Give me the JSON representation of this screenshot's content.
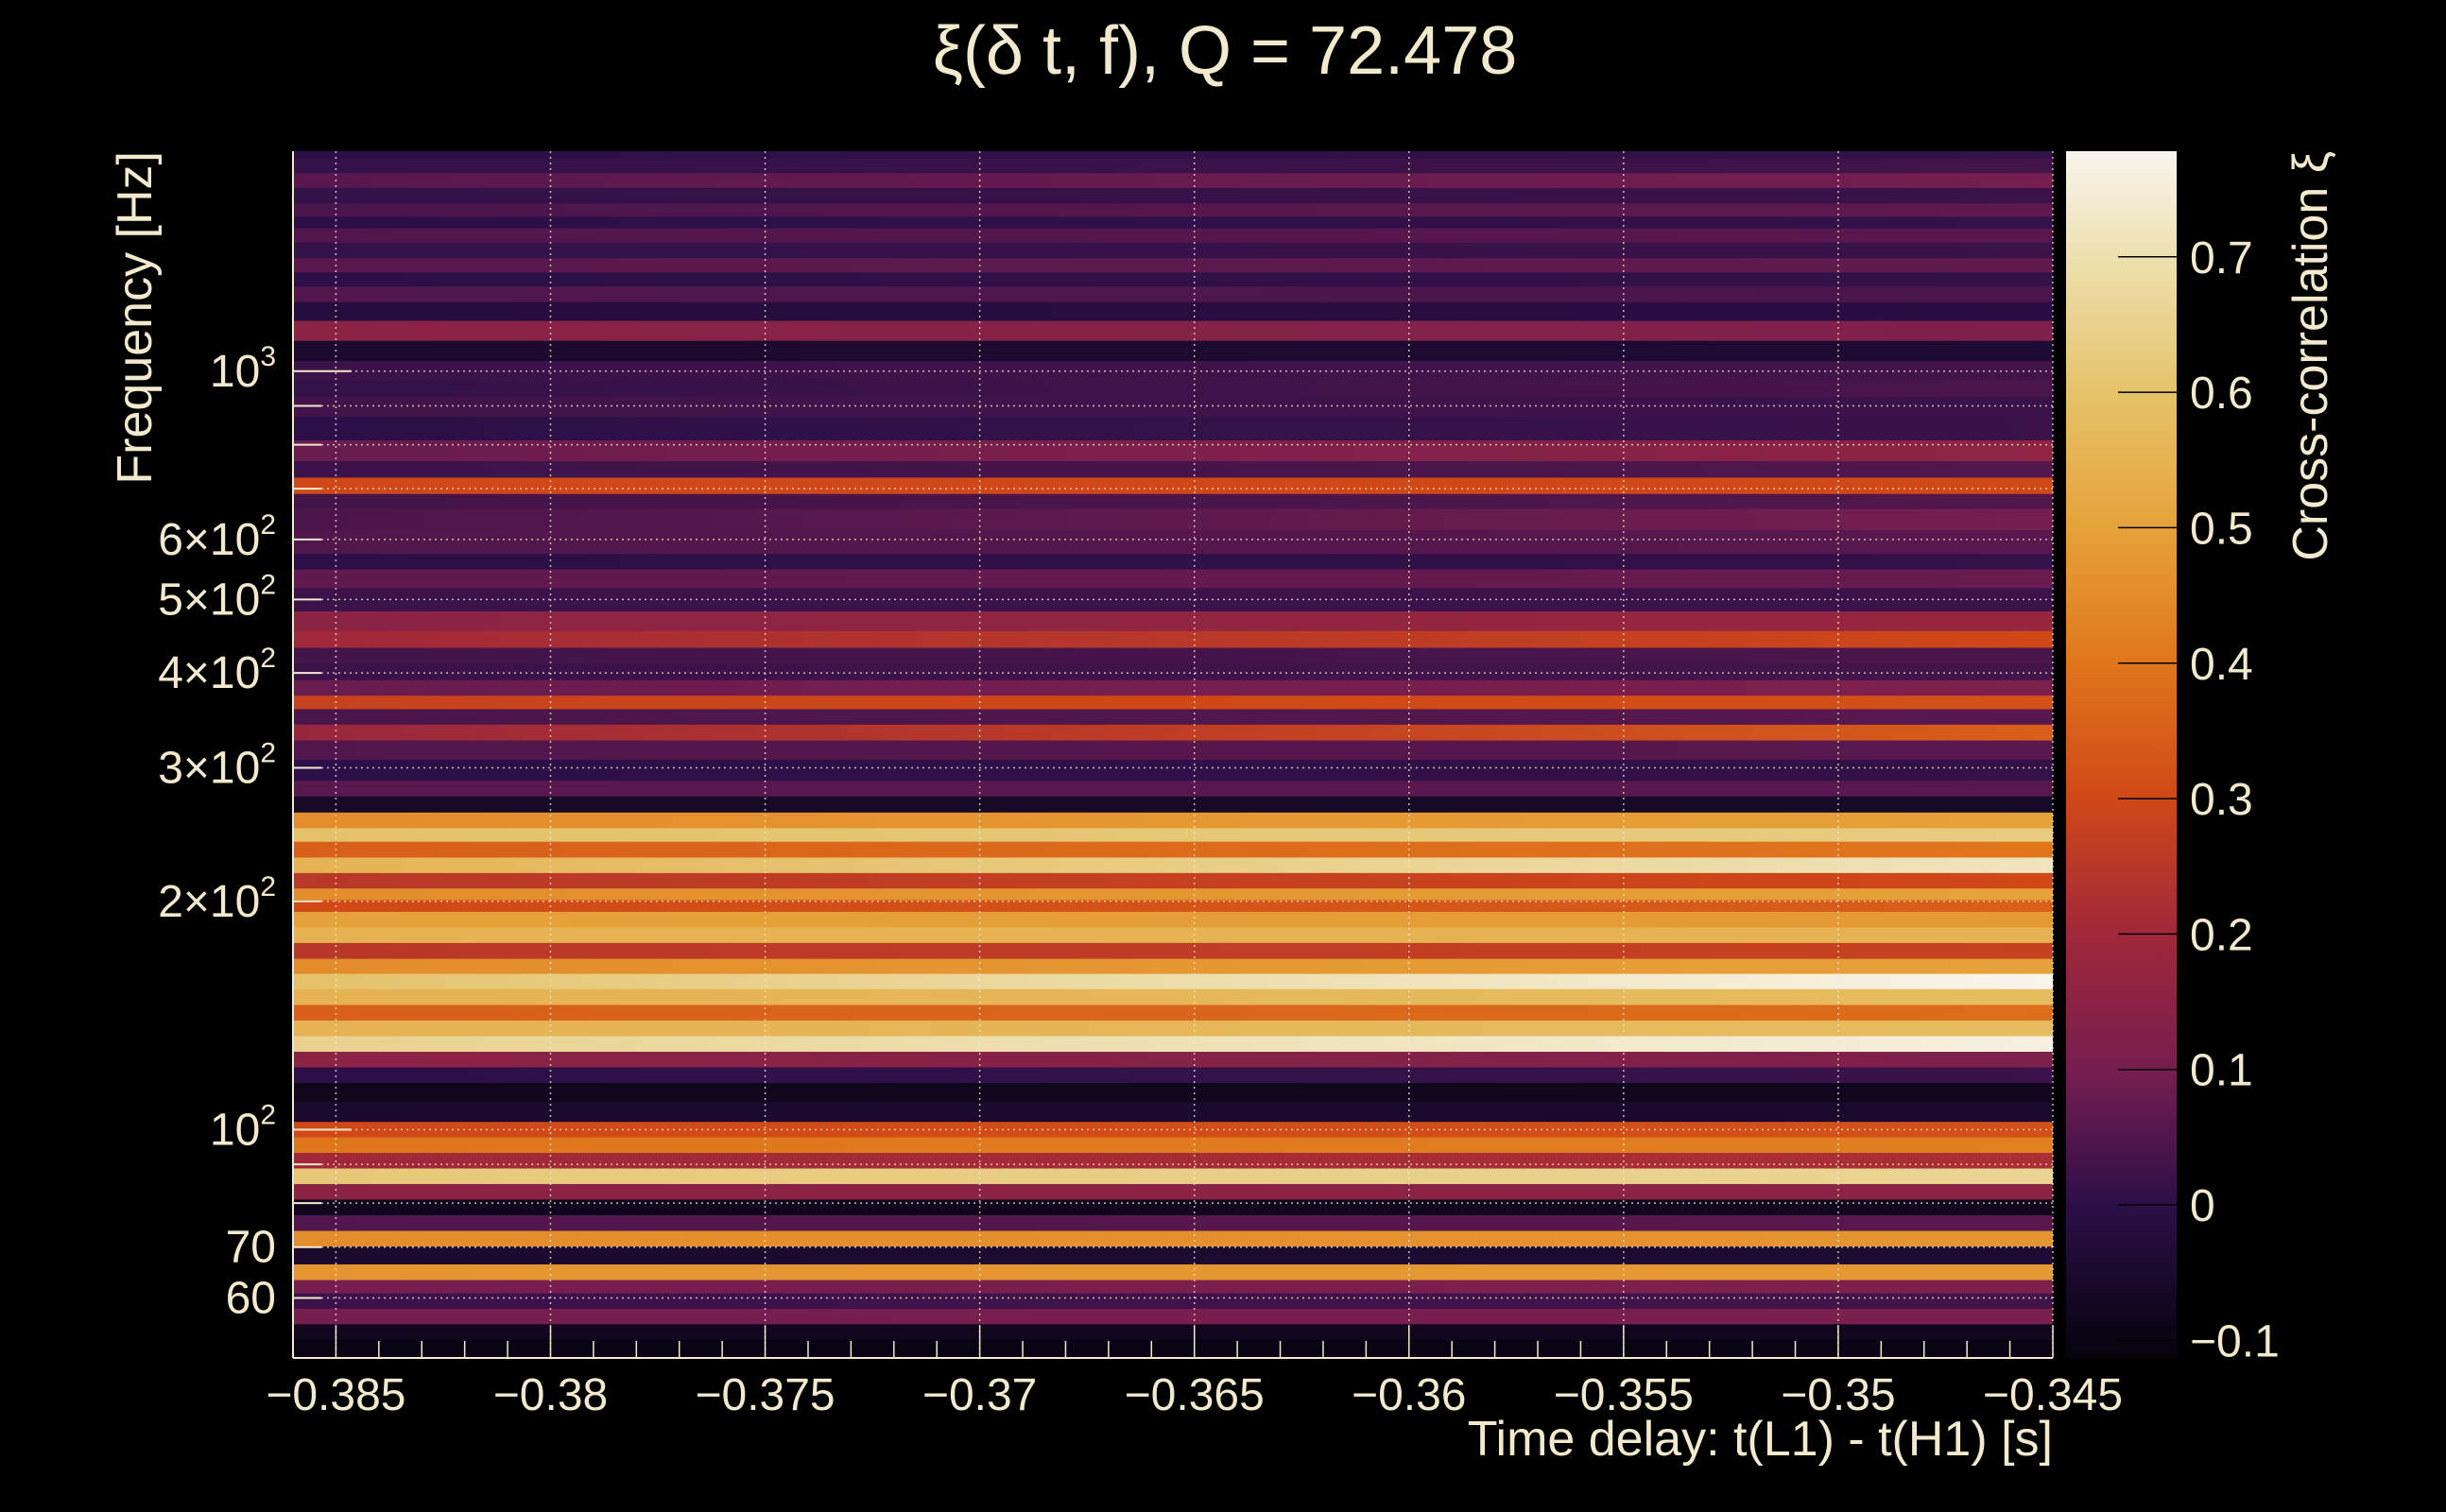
{
  "chart_data": {
    "type": "heatmap",
    "title": "ξ(δ t, f), Q = 72.478",
    "xlabel": "Time delay: t(L1) - t(H1) [s]",
    "ylabel": "Frequency [Hz]",
    "colorbar_label": "Cross-correlation ξ",
    "xlim": [
      -0.386,
      -0.345
    ],
    "ylim": [
      50,
      1950
    ],
    "yscale": "log",
    "clim": [
      -0.113,
      0.778
    ],
    "colormap": "inferno",
    "grid": true,
    "x_ticks": [
      {
        "value": -0.385,
        "label": "−0.385"
      },
      {
        "value": -0.38,
        "label": "−0.38"
      },
      {
        "value": -0.375,
        "label": "−0.375"
      },
      {
        "value": -0.37,
        "label": "−0.37"
      },
      {
        "value": -0.365,
        "label": "−0.365"
      },
      {
        "value": -0.36,
        "label": "−0.36"
      },
      {
        "value": -0.355,
        "label": "−0.355"
      },
      {
        "value": -0.35,
        "label": "−0.35"
      },
      {
        "value": -0.345,
        "label": "−0.345"
      }
    ],
    "y_ticks": [
      {
        "value": 60,
        "base": "60",
        "exp": ""
      },
      {
        "value": 70,
        "base": "70",
        "exp": ""
      },
      {
        "value": 100,
        "base": "10",
        "exp": "2"
      },
      {
        "value": 200,
        "base": "2×10",
        "exp": "2"
      },
      {
        "value": 300,
        "base": "3×10",
        "exp": "2"
      },
      {
        "value": 400,
        "base": "4×10",
        "exp": "2"
      },
      {
        "value": 500,
        "base": "5×10",
        "exp": "2"
      },
      {
        "value": 600,
        "base": "6×10",
        "exp": "2"
      },
      {
        "value": 1000,
        "base": "10",
        "exp": "3"
      }
    ],
    "colorbar_ticks": [
      {
        "value": 0.7,
        "label": "0.7"
      },
      {
        "value": 0.6,
        "label": "0.6"
      },
      {
        "value": 0.5,
        "label": "0.5"
      },
      {
        "value": 0.4,
        "label": "0.4"
      },
      {
        "value": 0.3,
        "label": "0.3"
      },
      {
        "value": 0.2,
        "label": "0.2"
      },
      {
        "value": 0.1,
        "label": "0.1"
      },
      {
        "value": 0,
        "label": "0"
      },
      {
        "value": -0.1,
        "label": "−0.1"
      }
    ],
    "rows_columns": [
      "frequency_hz",
      "xi_at_left",
      "xi_at_right"
    ],
    "rows": [
      [
        1948,
        0.0,
        0.01
      ],
      [
        1860,
        0.01,
        0.03
      ],
      [
        1789,
        0.06,
        0.1
      ],
      [
        1700,
        0.01,
        0.02
      ],
      [
        1627,
        0.04,
        0.07
      ],
      [
        1570,
        0.0,
        0.01
      ],
      [
        1516,
        0.05,
        0.06
      ],
      [
        1440,
        0.01,
        0.02
      ],
      [
        1379,
        0.06,
        0.07
      ],
      [
        1320,
        0.0,
        0.01
      ],
      [
        1267,
        0.05,
        0.04
      ],
      [
        1200,
        -0.02,
        -0.01
      ],
      [
        1131,
        0.15,
        0.12
      ],
      [
        1063,
        -0.05,
        -0.04
      ],
      [
        1000,
        0.02,
        0.03
      ],
      [
        950,
        0.01,
        0.04
      ],
      [
        901,
        0.03,
        0.02
      ],
      [
        840,
        0.0,
        0.02
      ],
      [
        782,
        0.08,
        0.16
      ],
      [
        740,
        0.02,
        0.05
      ],
      [
        708,
        0.3,
        0.3
      ],
      [
        670,
        0.03,
        0.05
      ],
      [
        647,
        0.04,
        0.1
      ],
      [
        589,
        0.05,
        0.06
      ],
      [
        560,
        0.0,
        0.01
      ],
      [
        536,
        0.07,
        0.08
      ],
      [
        500,
        0.02,
        0.02
      ],
      [
        465,
        0.15,
        0.18
      ],
      [
        444,
        0.2,
        0.3
      ],
      [
        420,
        0.03,
        0.04
      ],
      [
        403,
        0.02,
        0.03
      ],
      [
        380,
        0.08,
        0.12
      ],
      [
        367,
        0.28,
        0.32
      ],
      [
        350,
        0.04,
        0.06
      ],
      [
        334,
        0.18,
        0.35
      ],
      [
        318,
        0.05,
        0.06
      ],
      [
        297,
        0.0,
        0.01
      ],
      [
        280,
        0.06,
        0.06
      ],
      [
        270,
        -0.06,
        -0.06
      ],
      [
        254,
        0.45,
        0.5
      ],
      [
        245.5,
        0.6,
        0.63
      ],
      [
        234,
        0.35,
        0.4
      ],
      [
        223,
        0.55,
        0.72
      ],
      [
        213,
        0.25,
        0.3
      ],
      [
        203,
        0.45,
        0.5
      ],
      [
        198.5,
        0.3,
        0.35
      ],
      [
        189,
        0.5,
        0.48
      ],
      [
        180.6,
        0.55,
        0.55
      ],
      [
        172,
        0.25,
        0.28
      ],
      [
        164,
        0.45,
        0.5
      ],
      [
        157,
        0.6,
        0.78
      ],
      [
        149.5,
        0.55,
        0.58
      ],
      [
        142.6,
        0.35,
        0.38
      ],
      [
        136,
        0.55,
        0.58
      ],
      [
        129.7,
        0.65,
        0.76
      ],
      [
        123.7,
        0.15,
        0.12
      ],
      [
        118,
        0.0,
        0.02
      ],
      [
        112.5,
        -0.08,
        -0.08
      ],
      [
        104.8,
        -0.05,
        -0.05
      ],
      [
        100,
        0.3,
        0.32
      ],
      [
        95.4,
        0.4,
        0.42
      ],
      [
        91,
        0.2,
        0.22
      ],
      [
        86.8,
        0.62,
        0.66
      ],
      [
        82.8,
        0.15,
        0.15
      ],
      [
        79,
        -0.08,
        -0.08
      ],
      [
        75.3,
        0.05,
        0.06
      ],
      [
        71.8,
        0.45,
        0.47
      ],
      [
        68.5,
        -0.05,
        -0.04
      ],
      [
        64.4,
        0.47,
        0.48
      ],
      [
        62.3,
        0.1,
        0.12
      ],
      [
        59.4,
        0.02,
        0.03
      ],
      [
        56.7,
        0.1,
        0.11
      ],
      [
        54.1,
        -0.08,
        -0.08
      ],
      [
        51.6,
        -0.1,
        -0.1
      ]
    ]
  }
}
